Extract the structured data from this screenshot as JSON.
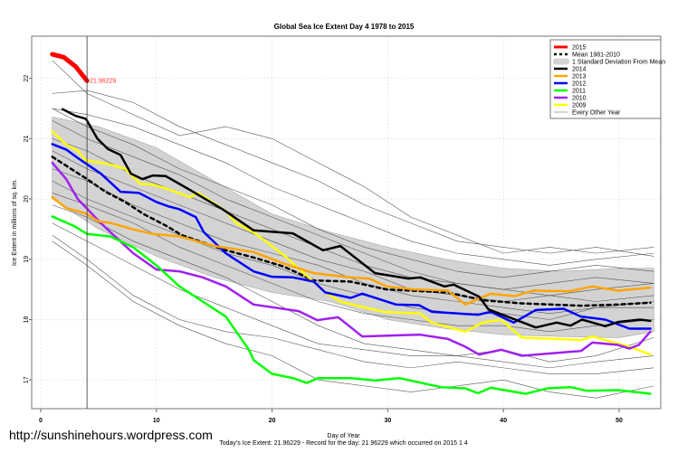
{
  "watermark": "http://sunshinehours.wordpress.com",
  "footer": "Today's Ice Extent: 21.96229  - Record for the day: 21.96229 which occurred on 2015 1 4",
  "chart_data": {
    "type": "line",
    "title": "Global Sea Ice Extent Day 4 1978 to 2015",
    "xlabel": "Day of Year",
    "ylabel": "Ice Extent in millions of sq. km.",
    "xlim": [
      0,
      54
    ],
    "ylim": [
      16.5,
      22.7
    ],
    "xticks": [
      0,
      10,
      20,
      30,
      40,
      50
    ],
    "yticks": [
      17,
      18,
      19,
      20,
      21,
      22
    ],
    "grid": true,
    "legend_position": "top-right",
    "current_day": 4,
    "annotation": "21.96229",
    "legend": [
      {
        "label": "2015",
        "color": "#ff0000",
        "style": "thick"
      },
      {
        "label": "Mean 1981-2010",
        "color": "#000000",
        "style": "dashed"
      },
      {
        "label": "1 Standard Deviation From Mean",
        "color": "#d3d3d3",
        "style": "band"
      },
      {
        "label": "2014",
        "color": "#000000",
        "style": "solid"
      },
      {
        "label": "2013",
        "color": "#ffa500",
        "style": "solid"
      },
      {
        "label": "2012",
        "color": "#0000ff",
        "style": "solid"
      },
      {
        "label": "2011",
        "color": "#00ff00",
        "style": "solid"
      },
      {
        "label": "2010",
        "color": "#a020f0",
        "style": "solid"
      },
      {
        "label": "2009",
        "color": "#ffff00",
        "style": "solid"
      },
      {
        "label": "Every Other Year",
        "color": "#aaaaaa",
        "style": "thin"
      }
    ],
    "std_band": {
      "x": [
        1,
        5,
        10,
        15,
        20,
        25,
        30,
        35,
        40,
        45,
        50,
        53
      ],
      "upper": [
        21.36,
        21.2,
        20.85,
        20.3,
        19.75,
        19.45,
        19.2,
        19.0,
        18.85,
        18.8,
        18.85,
        18.85
      ],
      "lower": [
        20.0,
        19.5,
        19.05,
        18.7,
        18.45,
        18.3,
        18.0,
        17.85,
        17.75,
        17.72,
        17.7,
        17.8
      ]
    },
    "other_years": {
      "x": [
        1,
        4,
        8,
        12,
        16,
        20,
        24,
        28,
        32,
        36,
        40,
        44,
        48,
        53
      ],
      "series": [
        [
          22.3,
          21.75,
          21.4,
          21.05,
          21.2,
          21.0,
          20.6,
          20.2,
          19.7,
          19.4,
          19.1,
          19.2,
          19.1,
          19.2
        ],
        [
          21.75,
          21.8,
          21.6,
          21.2,
          20.9,
          20.6,
          20.3,
          19.9,
          19.6,
          19.3,
          19.2,
          19.1,
          19.2,
          19.05
        ],
        [
          21.5,
          21.4,
          21.2,
          20.9,
          20.6,
          20.2,
          19.9,
          19.6,
          19.3,
          19.1,
          19.0,
          18.9,
          19.0,
          19.1
        ],
        [
          21.5,
          21.2,
          20.9,
          20.5,
          20.2,
          19.9,
          19.5,
          19.2,
          19.0,
          18.8,
          18.7,
          18.8,
          18.9,
          18.8
        ],
        [
          21.3,
          21.0,
          20.7,
          20.4,
          20.0,
          19.7,
          19.4,
          19.1,
          18.8,
          18.6,
          18.5,
          18.6,
          18.7,
          18.6
        ],
        [
          21.0,
          20.8,
          20.4,
          20.1,
          19.8,
          19.5,
          19.2,
          18.9,
          18.7,
          18.6,
          18.5,
          18.4,
          18.5,
          18.6
        ],
        [
          20.8,
          20.5,
          20.2,
          19.9,
          19.6,
          19.3,
          19.0,
          18.8,
          18.5,
          18.4,
          18.3,
          18.4,
          18.3,
          18.4
        ],
        [
          20.5,
          20.3,
          19.9,
          19.6,
          19.3,
          19.1,
          18.9,
          18.6,
          18.4,
          18.3,
          18.2,
          18.1,
          18.2,
          18.3
        ],
        [
          20.3,
          20.0,
          19.7,
          19.4,
          19.1,
          18.9,
          18.6,
          18.4,
          18.2,
          18.1,
          18.1,
          18.0,
          18.2,
          18.2
        ],
        [
          20.1,
          19.9,
          19.6,
          19.2,
          18.9,
          18.6,
          18.3,
          18.1,
          18.0,
          17.9,
          17.9,
          17.8,
          17.9,
          18.0
        ],
        [
          19.9,
          19.7,
          19.3,
          19.0,
          18.7,
          18.3,
          17.9,
          17.6,
          17.5,
          17.4,
          17.5,
          17.3,
          17.4,
          17.7
        ],
        [
          19.6,
          19.3,
          18.9,
          18.5,
          18.2,
          17.9,
          17.6,
          17.5,
          17.4,
          17.4,
          17.3,
          17.2,
          17.3,
          17.4
        ],
        [
          19.4,
          19.0,
          18.4,
          18.0,
          17.8,
          17.7,
          17.5,
          17.3,
          17.2,
          17.3,
          17.2,
          17.1,
          17.1,
          17.2
        ],
        [
          19.3,
          18.9,
          18.3,
          17.9,
          17.6,
          17.4,
          17.0,
          16.9,
          16.8,
          16.9,
          17.0,
          16.8,
          16.7,
          16.9
        ]
      ]
    },
    "series": [
      {
        "name": "Mean 1981-2010",
        "color": "#000000",
        "dashed": true,
        "width": 2.5,
        "x": [
          1,
          4,
          5.6,
          7.3,
          8.9,
          10.9,
          12.2,
          16,
          18.4,
          21,
          23.6,
          26.8,
          29.9,
          35.2,
          38.3,
          41.5,
          46.7,
          49.9,
          52.7
        ],
        "y": [
          20.7,
          20.33,
          20.12,
          19.95,
          19.75,
          19.55,
          19.4,
          19.15,
          19.03,
          18.88,
          18.65,
          18.63,
          18.5,
          18.45,
          18.32,
          18.27,
          18.23,
          18.25,
          18.28
        ]
      },
      {
        "name": "2009",
        "color": "#ffff00",
        "width": 2.5,
        "x": [
          1,
          2.2,
          3.2,
          3.9,
          5.8,
          7.3,
          8.6,
          9.6,
          10.9,
          12.9,
          13.6,
          16,
          16.9,
          18.4,
          21,
          24.6,
          25.9,
          27.8,
          29.6,
          32.8,
          33.8,
          36.7,
          38.2,
          39.8,
          41.6,
          44.6,
          46.7,
          47.7,
          50.9,
          52.7
        ],
        "y": [
          21.12,
          20.9,
          20.8,
          20.64,
          20.58,
          20.5,
          20.25,
          20.24,
          20.17,
          20.03,
          20.1,
          19.8,
          19.6,
          19.45,
          19.07,
          18.45,
          18.3,
          18.21,
          18.13,
          18.1,
          17.95,
          17.8,
          17.95,
          18.0,
          17.7,
          17.68,
          17.66,
          17.72,
          17.55,
          17.42
        ]
      },
      {
        "name": "2010",
        "color": "#a020f0",
        "width": 2.5,
        "x": [
          1,
          2.2,
          3.2,
          4.2,
          5.2,
          6.3,
          8,
          10,
          12,
          14,
          16,
          18.4,
          22.3,
          23.9,
          25.7,
          27.8,
          32.8,
          35.2,
          36.7,
          37.9,
          39.8,
          41.6,
          43.5,
          46.7,
          47.7,
          49.9,
          50.9,
          51.7,
          52.7
        ],
        "y": [
          20.6,
          20.33,
          20.0,
          19.8,
          19.6,
          19.4,
          19.1,
          18.83,
          18.8,
          18.7,
          18.55,
          18.25,
          18.14,
          17.99,
          18.04,
          17.72,
          17.75,
          17.68,
          17.55,
          17.42,
          17.5,
          17.4,
          17.43,
          17.48,
          17.62,
          17.58,
          17.52,
          17.58,
          17.8
        ]
      },
      {
        "name": "2011",
        "color": "#00ff00",
        "width": 2.5,
        "x": [
          1,
          2.9,
          4,
          6,
          8,
          10,
          12,
          14,
          16,
          18,
          18.4,
          20,
          21.8,
          23,
          24,
          26.8,
          28.9,
          31,
          34.6,
          36.7,
          37.8,
          38.9,
          41.9,
          43.8,
          45.8,
          47.2,
          49.9,
          52.7
        ],
        "y": [
          19.71,
          19.55,
          19.42,
          19.38,
          19.2,
          18.9,
          18.55,
          18.3,
          18.05,
          17.5,
          17.33,
          17.1,
          17.03,
          16.95,
          17.03,
          17.03,
          16.99,
          17.03,
          16.88,
          16.86,
          16.78,
          16.87,
          16.77,
          16.86,
          16.88,
          16.82,
          16.83,
          16.77
        ]
      },
      {
        "name": "2012",
        "color": "#0000ff",
        "width": 2.5,
        "x": [
          1,
          2.2,
          3.2,
          4.2,
          5.2,
          6.9,
          8.5,
          10,
          11,
          12,
          13.4,
          14.1,
          16,
          18.4,
          20,
          21.8,
          23.6,
          24.6,
          26.8,
          27.8,
          30.7,
          32.7,
          33.8,
          37.8,
          38.9,
          40.9,
          42.8,
          45.2,
          46.7,
          48.8,
          50.9,
          52.7
        ],
        "y": [
          20.91,
          20.82,
          20.68,
          20.55,
          20.42,
          20.12,
          20.1,
          19.95,
          19.88,
          19.83,
          19.7,
          19.45,
          19.1,
          18.8,
          18.71,
          18.7,
          18.63,
          18.45,
          18.36,
          18.43,
          18.25,
          18.24,
          18.13,
          18.08,
          18.13,
          17.95,
          18.16,
          18.18,
          18.05,
          18.0,
          17.85,
          17.85
        ]
      },
      {
        "name": "2013",
        "color": "#ffa500",
        "width": 2.5,
        "x": [
          1,
          2.2,
          3.9,
          5,
          6.1,
          7.9,
          9.7,
          12,
          15,
          18.4,
          21,
          23.6,
          26.8,
          28.4,
          29.9,
          32.3,
          35.2,
          36.7,
          38.9,
          41,
          42.6,
          45.7,
          47.7,
          49.9,
          52.7
        ],
        "y": [
          20.03,
          19.85,
          19.76,
          19.63,
          19.6,
          19.5,
          19.42,
          19.38,
          19.22,
          19.12,
          18.93,
          18.77,
          18.7,
          18.68,
          18.55,
          18.5,
          18.48,
          18.25,
          18.43,
          18.39,
          18.48,
          18.47,
          18.55,
          18.48,
          18.53
        ]
      },
      {
        "name": "2014",
        "color": "#000000",
        "width": 2.5,
        "x": [
          1.9,
          3,
          3.9,
          4.9,
          5.8,
          6.9,
          7.8,
          8.8,
          9.7,
          10.8,
          12.9,
          15.8,
          18.4,
          21.8,
          24.4,
          25.9,
          28.9,
          31.8,
          32.8,
          34.9,
          35.7,
          37.9,
          38.7,
          42.8,
          44.6,
          45.8,
          46.8,
          48.8,
          49.9,
          51.8,
          52.7
        ],
        "y": [
          21.49,
          21.38,
          21.33,
          21.0,
          20.83,
          20.73,
          20.42,
          20.33,
          20.39,
          20.38,
          20.15,
          19.82,
          19.48,
          19.43,
          19.15,
          19.22,
          18.77,
          18.68,
          18.7,
          18.55,
          18.58,
          18.38,
          18.17,
          17.87,
          17.95,
          17.9,
          18.0,
          17.89,
          17.96,
          18.0,
          17.98
        ]
      },
      {
        "name": "2015",
        "color": "#ff0000",
        "width": 5,
        "x": [
          1,
          2,
          3,
          4
        ],
        "y": [
          22.4,
          22.35,
          22.2,
          21.96
        ]
      }
    ]
  }
}
